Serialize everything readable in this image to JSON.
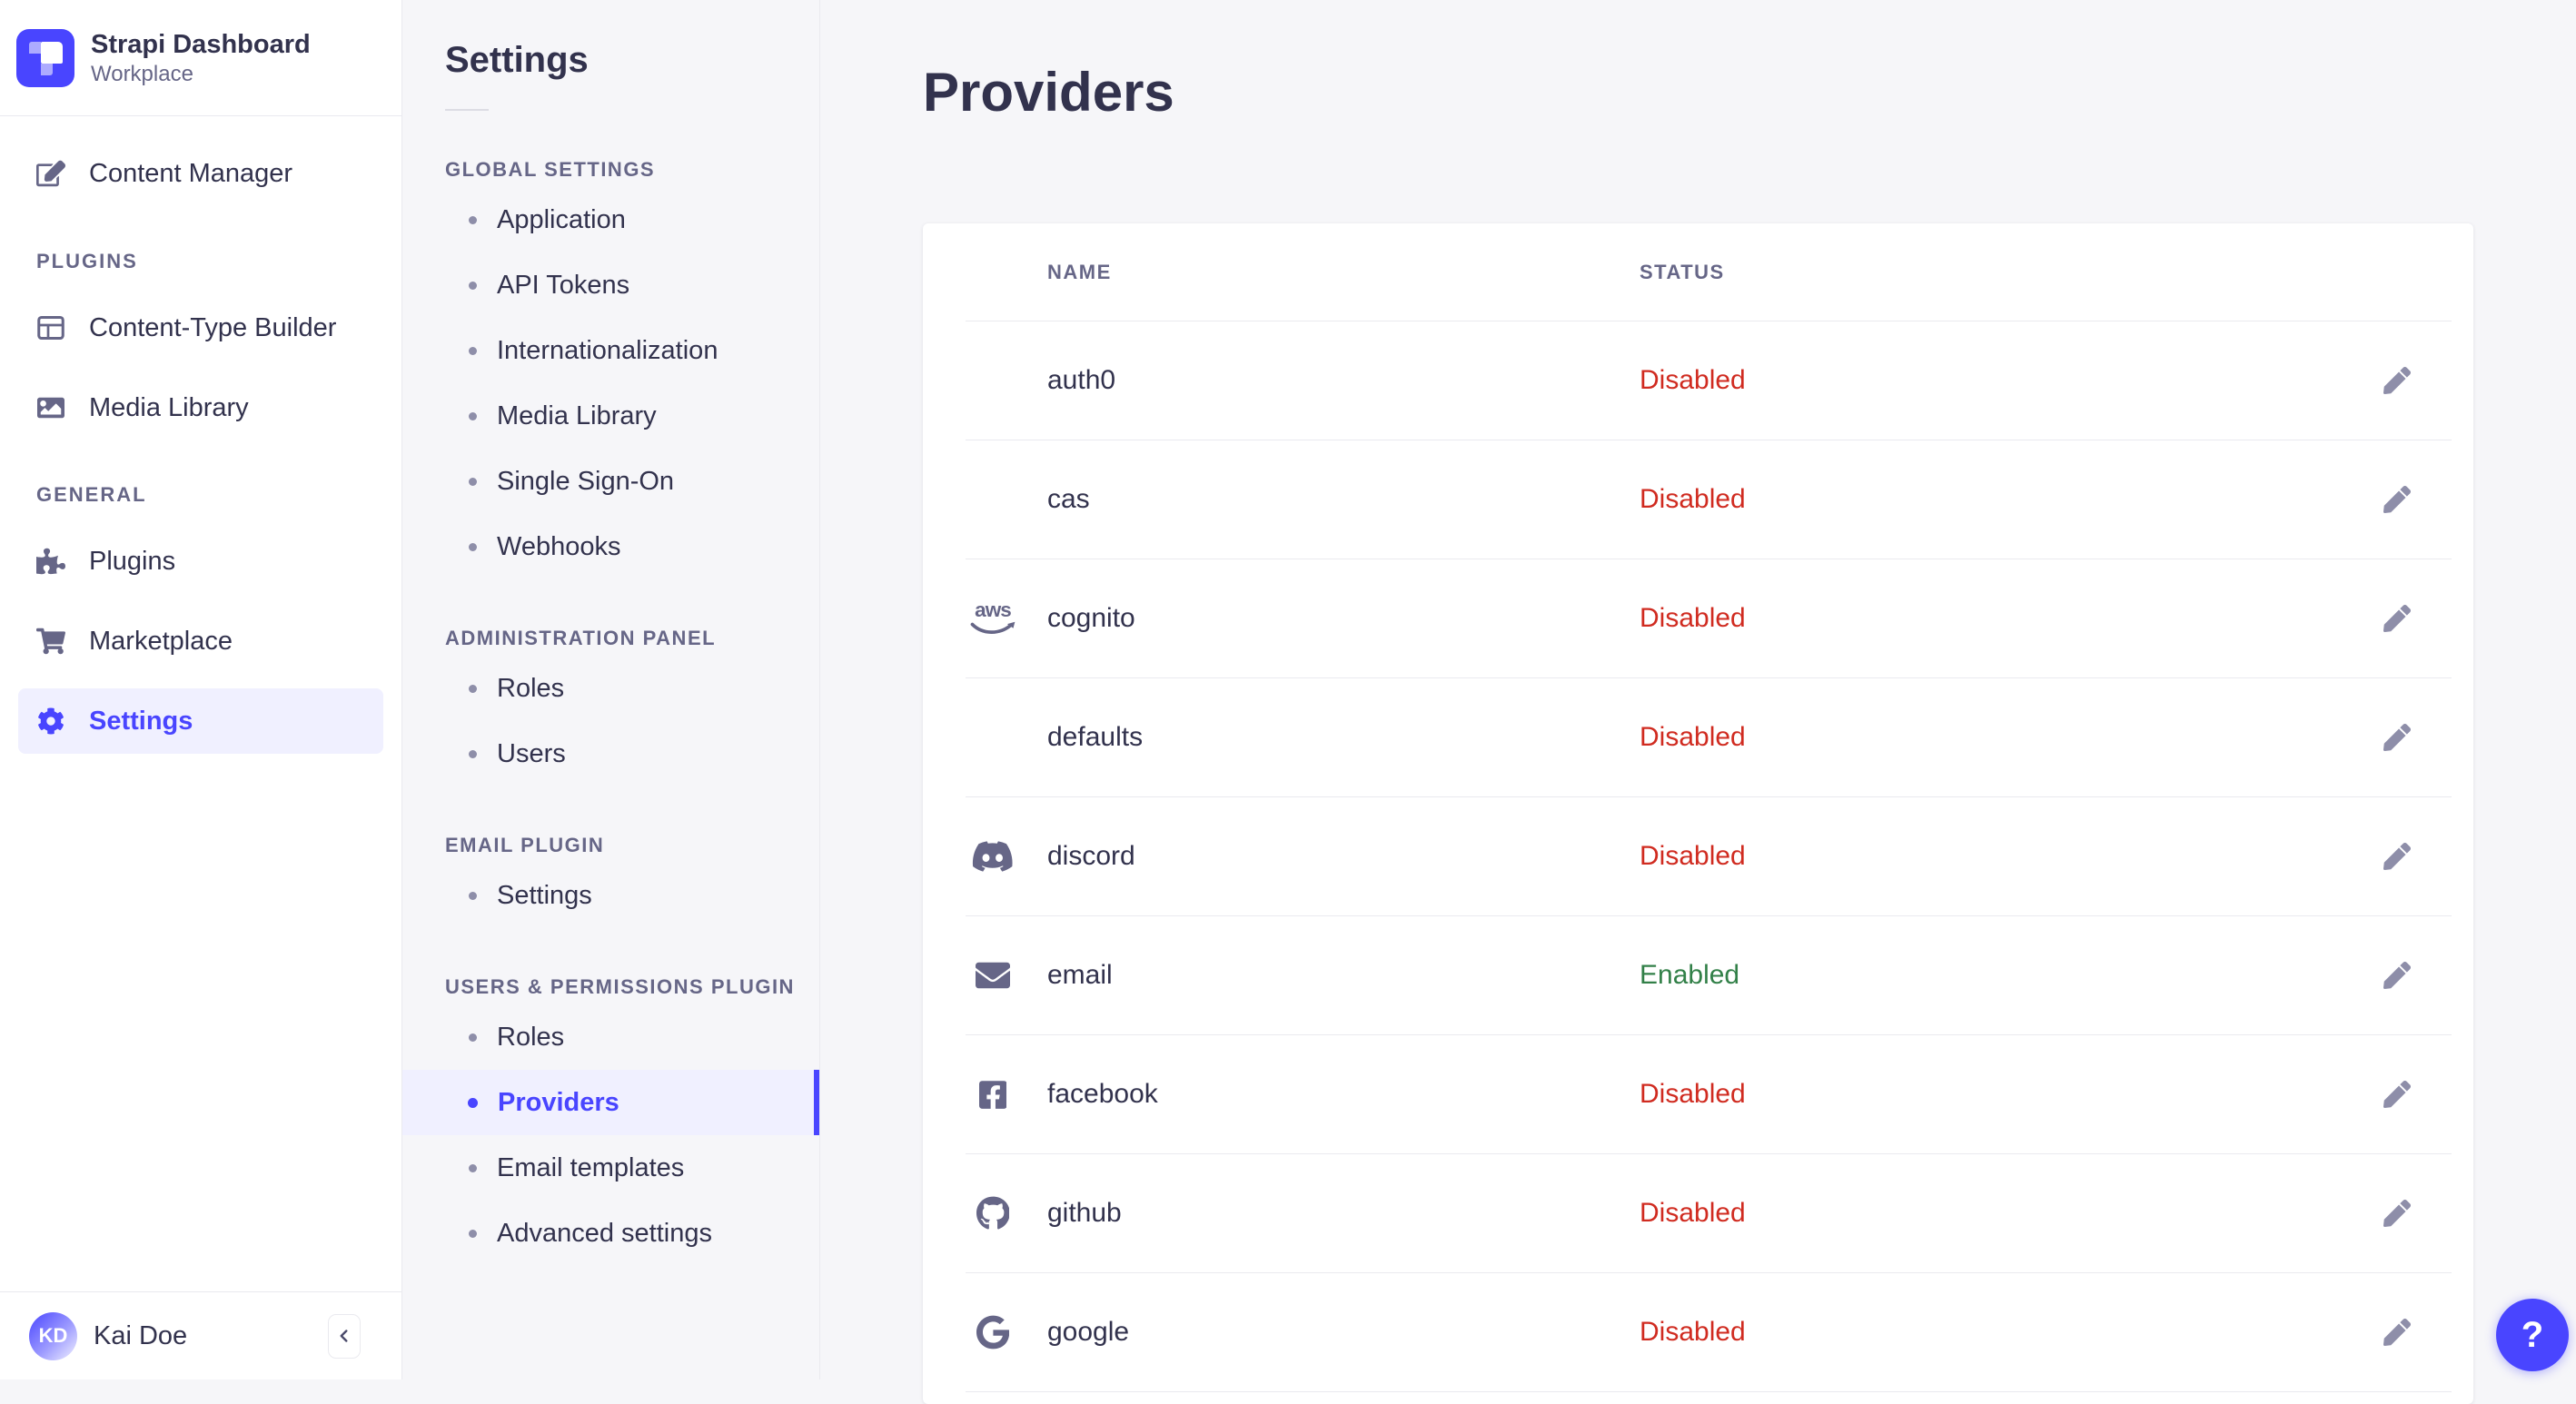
{
  "brand": {
    "title": "Strapi Dashboard",
    "subtitle": "Workplace"
  },
  "sidebar": {
    "sections": [
      {
        "label": "",
        "items": [
          {
            "label": "Content Manager",
            "icon": "content-manager"
          }
        ]
      },
      {
        "label": "PLUGINS",
        "items": [
          {
            "label": "Content-Type Builder",
            "icon": "content-type-builder"
          },
          {
            "label": "Media Library",
            "icon": "media-library"
          }
        ]
      },
      {
        "label": "GENERAL",
        "items": [
          {
            "label": "Plugins",
            "icon": "plugins"
          },
          {
            "label": "Marketplace",
            "icon": "marketplace"
          },
          {
            "label": "Settings",
            "icon": "settings",
            "active": true
          }
        ]
      }
    ],
    "user": {
      "initials": "KD",
      "name": "Kai Doe"
    }
  },
  "settings_nav": {
    "title": "Settings",
    "sections": [
      {
        "label": "GLOBAL SETTINGS",
        "items": [
          {
            "label": "Application"
          },
          {
            "label": "API Tokens"
          },
          {
            "label": "Internationalization"
          },
          {
            "label": "Media Library"
          },
          {
            "label": "Single Sign-On"
          },
          {
            "label": "Webhooks"
          }
        ]
      },
      {
        "label": "ADMINISTRATION PANEL",
        "items": [
          {
            "label": "Roles"
          },
          {
            "label": "Users"
          }
        ]
      },
      {
        "label": "EMAIL PLUGIN",
        "items": [
          {
            "label": "Settings"
          }
        ]
      },
      {
        "label": "USERS & PERMISSIONS PLUGIN",
        "items": [
          {
            "label": "Roles"
          },
          {
            "label": "Providers",
            "active": true
          },
          {
            "label": "Email templates"
          },
          {
            "label": "Advanced settings"
          }
        ]
      }
    ]
  },
  "main": {
    "title": "Providers",
    "table": {
      "columns": [
        "NAME",
        "STATUS"
      ],
      "rows": [
        {
          "name": "auth0",
          "icon": "",
          "status": "Disabled"
        },
        {
          "name": "cas",
          "icon": "",
          "status": "Disabled"
        },
        {
          "name": "cognito",
          "icon": "aws",
          "status": "Disabled"
        },
        {
          "name": "defaults",
          "icon": "",
          "status": "Disabled"
        },
        {
          "name": "discord",
          "icon": "discord",
          "status": "Disabled"
        },
        {
          "name": "email",
          "icon": "email",
          "status": "Enabled"
        },
        {
          "name": "facebook",
          "icon": "facebook",
          "status": "Disabled"
        },
        {
          "name": "github",
          "icon": "github",
          "status": "Disabled"
        },
        {
          "name": "google",
          "icon": "google",
          "status": "Disabled"
        }
      ]
    },
    "help_label": "?"
  },
  "colors": {
    "primary": "#4945ff",
    "disabled": "#d02b20",
    "enabled": "#328048",
    "text_dark": "#32324d",
    "text_gray": "#666687",
    "border": "#eaeaef"
  }
}
